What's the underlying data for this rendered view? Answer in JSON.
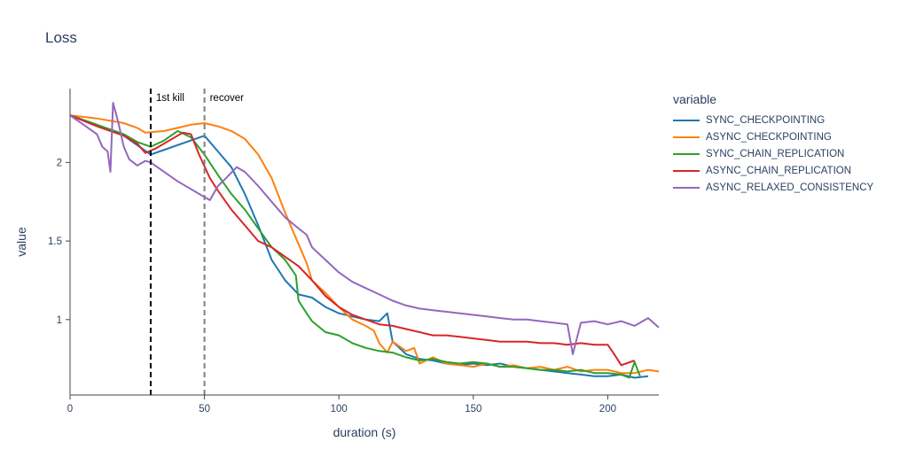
{
  "chart_data": {
    "type": "line",
    "title": "Loss",
    "xlabel": "duration (s)",
    "ylabel": "value",
    "legend_title": "variable",
    "legend_position": "top-right outside",
    "xlim": [
      0,
      219
    ],
    "ylim": [
      0.52,
      2.47
    ],
    "x_ticks": [
      0,
      50,
      100,
      150,
      200
    ],
    "y_ticks": [
      1,
      1.5,
      2
    ],
    "grid": false,
    "annotations": [
      {
        "x": 30,
        "label": "1st kill",
        "color": "#000000",
        "style": "dashed"
      },
      {
        "x": 50,
        "label": "recover",
        "color": "#7f7f7f",
        "style": "dashed"
      }
    ],
    "series": [
      {
        "name": "SYNC_CHECKPOINTING",
        "color": "#1f77b4",
        "points": [
          [
            0,
            2.3
          ],
          [
            10,
            2.24
          ],
          [
            20,
            2.17
          ],
          [
            25,
            2.11
          ],
          [
            30,
            2.05
          ],
          [
            50,
            2.17
          ],
          [
            55,
            2.07
          ],
          [
            60,
            1.97
          ],
          [
            65,
            1.8
          ],
          [
            70,
            1.6
          ],
          [
            75,
            1.38
          ],
          [
            80,
            1.25
          ],
          [
            85,
            1.16
          ],
          [
            90,
            1.14
          ],
          [
            95,
            1.08
          ],
          [
            100,
            1.04
          ],
          [
            105,
            1.02
          ],
          [
            110,
            1.0
          ],
          [
            115,
            0.99
          ],
          [
            118,
            1.04
          ],
          [
            120,
            0.86
          ],
          [
            125,
            0.78
          ],
          [
            130,
            0.75
          ],
          [
            135,
            0.74
          ],
          [
            140,
            0.72
          ],
          [
            145,
            0.71
          ],
          [
            150,
            0.72
          ],
          [
            155,
            0.71
          ],
          [
            160,
            0.72
          ],
          [
            165,
            0.7
          ],
          [
            170,
            0.69
          ],
          [
            175,
            0.68
          ],
          [
            180,
            0.67
          ],
          [
            185,
            0.66
          ],
          [
            190,
            0.65
          ],
          [
            195,
            0.64
          ],
          [
            200,
            0.64
          ],
          [
            205,
            0.65
          ],
          [
            210,
            0.63
          ],
          [
            215,
            0.64
          ]
        ]
      },
      {
        "name": "ASYNC_CHECKPOINTING",
        "color": "#ff7f0e",
        "points": [
          [
            0,
            2.3
          ],
          [
            10,
            2.28
          ],
          [
            20,
            2.25
          ],
          [
            25,
            2.22
          ],
          [
            28,
            2.19
          ],
          [
            35,
            2.2
          ],
          [
            40,
            2.22
          ],
          [
            45,
            2.24
          ],
          [
            50,
            2.25
          ],
          [
            55,
            2.23
          ],
          [
            60,
            2.2
          ],
          [
            65,
            2.15
          ],
          [
            70,
            2.05
          ],
          [
            75,
            1.9
          ],
          [
            80,
            1.68
          ],
          [
            85,
            1.48
          ],
          [
            88,
            1.36
          ],
          [
            90,
            1.25
          ],
          [
            95,
            1.17
          ],
          [
            100,
            1.08
          ],
          [
            105,
            1.0
          ],
          [
            110,
            0.96
          ],
          [
            113,
            0.93
          ],
          [
            115,
            0.85
          ],
          [
            118,
            0.79
          ],
          [
            120,
            0.86
          ],
          [
            125,
            0.8
          ],
          [
            128,
            0.82
          ],
          [
            130,
            0.72
          ],
          [
            135,
            0.76
          ],
          [
            140,
            0.72
          ],
          [
            145,
            0.71
          ],
          [
            150,
            0.7
          ],
          [
            155,
            0.72
          ],
          [
            160,
            0.7
          ],
          [
            165,
            0.71
          ],
          [
            170,
            0.69
          ],
          [
            175,
            0.7
          ],
          [
            180,
            0.68
          ],
          [
            185,
            0.7
          ],
          [
            190,
            0.67
          ],
          [
            195,
            0.68
          ],
          [
            200,
            0.68
          ],
          [
            205,
            0.66
          ],
          [
            210,
            0.66
          ],
          [
            215,
            0.68
          ],
          [
            219,
            0.67
          ]
        ]
      },
      {
        "name": "SYNC_CHAIN_REPLICATION",
        "color": "#2ca02c",
        "points": [
          [
            0,
            2.3
          ],
          [
            10,
            2.24
          ],
          [
            20,
            2.18
          ],
          [
            25,
            2.13
          ],
          [
            30,
            2.1
          ],
          [
            35,
            2.14
          ],
          [
            40,
            2.2
          ],
          [
            45,
            2.16
          ],
          [
            50,
            2.05
          ],
          [
            55,
            1.92
          ],
          [
            60,
            1.8
          ],
          [
            65,
            1.7
          ],
          [
            70,
            1.58
          ],
          [
            75,
            1.46
          ],
          [
            80,
            1.38
          ],
          [
            84,
            1.28
          ],
          [
            85,
            1.12
          ],
          [
            88,
            1.04
          ],
          [
            90,
            0.99
          ],
          [
            95,
            0.92
          ],
          [
            100,
            0.9
          ],
          [
            105,
            0.85
          ],
          [
            110,
            0.82
          ],
          [
            115,
            0.8
          ],
          [
            120,
            0.79
          ],
          [
            125,
            0.76
          ],
          [
            130,
            0.74
          ],
          [
            135,
            0.75
          ],
          [
            140,
            0.73
          ],
          [
            145,
            0.72
          ],
          [
            150,
            0.73
          ],
          [
            155,
            0.72
          ],
          [
            160,
            0.7
          ],
          [
            165,
            0.7
          ],
          [
            170,
            0.69
          ],
          [
            175,
            0.68
          ],
          [
            180,
            0.68
          ],
          [
            185,
            0.67
          ],
          [
            190,
            0.68
          ],
          [
            195,
            0.66
          ],
          [
            200,
            0.66
          ],
          [
            205,
            0.65
          ],
          [
            208,
            0.63
          ],
          [
            210,
            0.73
          ],
          [
            212,
            0.64
          ]
        ]
      },
      {
        "name": "ASYNC_CHAIN_REPLICATION",
        "color": "#d62728",
        "points": [
          [
            0,
            2.3
          ],
          [
            10,
            2.23
          ],
          [
            20,
            2.17
          ],
          [
            25,
            2.12
          ],
          [
            28,
            2.06
          ],
          [
            32,
            2.09
          ],
          [
            38,
            2.15
          ],
          [
            42,
            2.19
          ],
          [
            45,
            2.18
          ],
          [
            48,
            2.05
          ],
          [
            52,
            1.9
          ],
          [
            55,
            1.82
          ],
          [
            60,
            1.7
          ],
          [
            65,
            1.6
          ],
          [
            70,
            1.5
          ],
          [
            75,
            1.46
          ],
          [
            80,
            1.4
          ],
          [
            85,
            1.34
          ],
          [
            90,
            1.25
          ],
          [
            95,
            1.15
          ],
          [
            100,
            1.08
          ],
          [
            105,
            1.03
          ],
          [
            110,
            1.0
          ],
          [
            115,
            0.97
          ],
          [
            120,
            0.96
          ],
          [
            125,
            0.94
          ],
          [
            130,
            0.92
          ],
          [
            135,
            0.9
          ],
          [
            140,
            0.9
          ],
          [
            145,
            0.89
          ],
          [
            150,
            0.88
          ],
          [
            155,
            0.87
          ],
          [
            160,
            0.86
          ],
          [
            165,
            0.86
          ],
          [
            170,
            0.86
          ],
          [
            175,
            0.85
          ],
          [
            180,
            0.85
          ],
          [
            185,
            0.84
          ],
          [
            190,
            0.85
          ],
          [
            195,
            0.84
          ],
          [
            200,
            0.84
          ],
          [
            202,
            0.79
          ],
          [
            205,
            0.71
          ],
          [
            210,
            0.74
          ]
        ]
      },
      {
        "name": "ASYNC_RELAXED_CONSISTENCY",
        "color": "#9467bd",
        "points": [
          [
            0,
            2.3
          ],
          [
            5,
            2.24
          ],
          [
            10,
            2.18
          ],
          [
            12,
            2.1
          ],
          [
            14,
            2.07
          ],
          [
            15,
            1.94
          ],
          [
            16,
            2.38
          ],
          [
            18,
            2.25
          ],
          [
            20,
            2.1
          ],
          [
            22,
            2.02
          ],
          [
            25,
            1.98
          ],
          [
            28,
            2.01
          ],
          [
            30,
            2.0
          ],
          [
            40,
            1.88
          ],
          [
            48,
            1.8
          ],
          [
            52,
            1.76
          ],
          [
            55,
            1.85
          ],
          [
            58,
            1.9
          ],
          [
            62,
            1.97
          ],
          [
            65,
            1.94
          ],
          [
            70,
            1.85
          ],
          [
            75,
            1.75
          ],
          [
            80,
            1.65
          ],
          [
            85,
            1.58
          ],
          [
            88,
            1.54
          ],
          [
            90,
            1.46
          ],
          [
            95,
            1.38
          ],
          [
            100,
            1.3
          ],
          [
            105,
            1.24
          ],
          [
            110,
            1.2
          ],
          [
            115,
            1.16
          ],
          [
            120,
            1.12
          ],
          [
            125,
            1.09
          ],
          [
            130,
            1.07
          ],
          [
            135,
            1.06
          ],
          [
            140,
            1.05
          ],
          [
            145,
            1.04
          ],
          [
            150,
            1.03
          ],
          [
            155,
            1.02
          ],
          [
            160,
            1.01
          ],
          [
            165,
            1.0
          ],
          [
            170,
            1.0
          ],
          [
            175,
            0.99
          ],
          [
            180,
            0.98
          ],
          [
            185,
            0.97
          ],
          [
            187,
            0.78
          ],
          [
            190,
            0.98
          ],
          [
            195,
            0.99
          ],
          [
            200,
            0.97
          ],
          [
            205,
            0.99
          ],
          [
            210,
            0.96
          ],
          [
            215,
            1.01
          ],
          [
            219,
            0.95
          ]
        ]
      }
    ]
  }
}
